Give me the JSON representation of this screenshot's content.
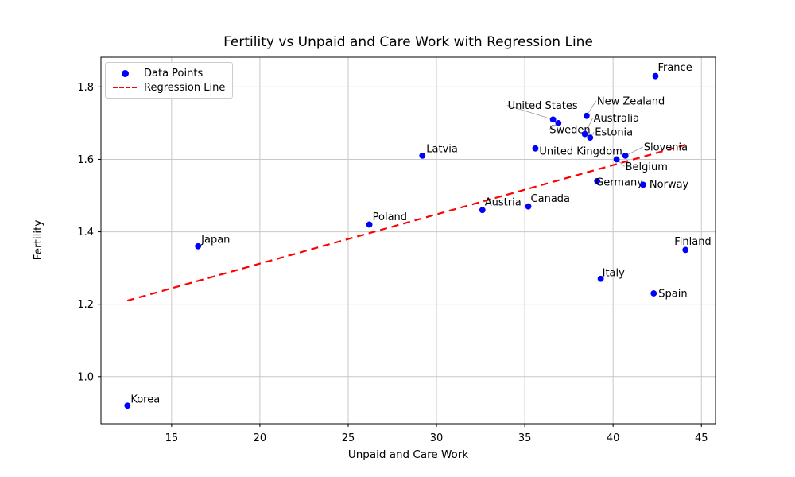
{
  "figure": {
    "background": "#ffffff"
  },
  "chart_data": {
    "type": "scatter",
    "title": "Fertility vs Unpaid and Care Work with Regression Line",
    "xlabel": "Unpaid and Care Work",
    "ylabel": "Fertility",
    "xlim": [
      11.0,
      45.8
    ],
    "ylim": [
      0.87,
      1.882
    ],
    "xticks": [
      15,
      20,
      25,
      30,
      35,
      40,
      45
    ],
    "yticks": [
      1.0,
      1.2,
      1.4,
      1.6,
      1.8
    ],
    "grid": true,
    "grid_color": "#c8c8c8",
    "point_color": "#0000ff",
    "regression_color": "#ff0000",
    "leader_color": "#999999",
    "legend": {
      "position": "upper-left",
      "entries": [
        {
          "label": "Data Points",
          "marker": "dot",
          "color": "#0000ff"
        },
        {
          "label": "Regression Line",
          "marker": "dashed-line",
          "color": "#ff0000"
        }
      ]
    },
    "series": [
      {
        "name": "Data Points",
        "type": "scatter",
        "color": "#0000ff",
        "points": [
          {
            "country": "Korea",
            "x": 12.5,
            "y": 0.92,
            "label_dx": 4,
            "label_dy": -8,
            "leader": false
          },
          {
            "country": "Japan",
            "x": 16.5,
            "y": 1.36,
            "label_dx": 4,
            "label_dy": -9,
            "leader": false
          },
          {
            "country": "Poland",
            "x": 26.2,
            "y": 1.42,
            "label_dx": 4,
            "label_dy": -10,
            "leader": false
          },
          {
            "country": "Latvia",
            "x": 29.2,
            "y": 1.61,
            "label_dx": 5,
            "label_dy": -9,
            "leader": false
          },
          {
            "country": "Austria",
            "x": 32.6,
            "y": 1.46,
            "label_dx": 3,
            "label_dy": -10,
            "leader": false
          },
          {
            "country": "Canada",
            "x": 35.2,
            "y": 1.47,
            "label_dx": 3,
            "label_dy": -10,
            "leader": false
          },
          {
            "country": "United Kingdom",
            "x": 35.6,
            "y": 1.63,
            "label_dx": 5,
            "label_dy": 3,
            "leader": true
          },
          {
            "country": "United States",
            "x": 36.6,
            "y": 1.71,
            "label_dx": -57,
            "label_dy": -18,
            "leader": true
          },
          {
            "country": "Sweden",
            "x": 36.9,
            "y": 1.7,
            "label_dx": -11,
            "label_dy": 8,
            "leader": true
          },
          {
            "country": "New Zealand",
            "x": 38.5,
            "y": 1.72,
            "label_dx": 13,
            "label_dy": -19,
            "leader": true
          },
          {
            "country": "Australia",
            "x": 38.4,
            "y": 1.67,
            "label_dx": 11,
            "label_dy": -20,
            "leader": true
          },
          {
            "country": "Estonia",
            "x": 38.7,
            "y": 1.66,
            "label_dx": 6,
            "label_dy": -7,
            "leader": true
          },
          {
            "country": "Germany",
            "x": 39.1,
            "y": 1.54,
            "label_dx": -2,
            "label_dy": 1,
            "leader": false
          },
          {
            "country": "Italy",
            "x": 39.3,
            "y": 1.27,
            "label_dx": 2,
            "label_dy": -8,
            "leader": false
          },
          {
            "country": "Belgium",
            "x": 40.2,
            "y": 1.6,
            "label_dx": 11,
            "label_dy": 9,
            "leader": true
          },
          {
            "country": "Slovenia",
            "x": 40.7,
            "y": 1.61,
            "label_dx": 23,
            "label_dy": -11,
            "leader": true
          },
          {
            "country": "Norway",
            "x": 41.7,
            "y": 1.53,
            "label_dx": 8,
            "label_dy": -1,
            "leader": false
          },
          {
            "country": "Spain",
            "x": 42.3,
            "y": 1.23,
            "label_dx": 6,
            "label_dy": 0,
            "leader": false
          },
          {
            "country": "France",
            "x": 42.4,
            "y": 1.83,
            "label_dx": 3,
            "label_dy": -11,
            "leader": false
          },
          {
            "country": "Finland",
            "x": 44.1,
            "y": 1.35,
            "label_dx": -14,
            "label_dy": -11,
            "leader": false
          }
        ]
      },
      {
        "name": "Regression Line",
        "type": "line",
        "style": "dashed",
        "color": "#ff0000",
        "x": [
          12.5,
          44.1
        ],
        "y": [
          1.21,
          1.64
        ]
      }
    ]
  }
}
